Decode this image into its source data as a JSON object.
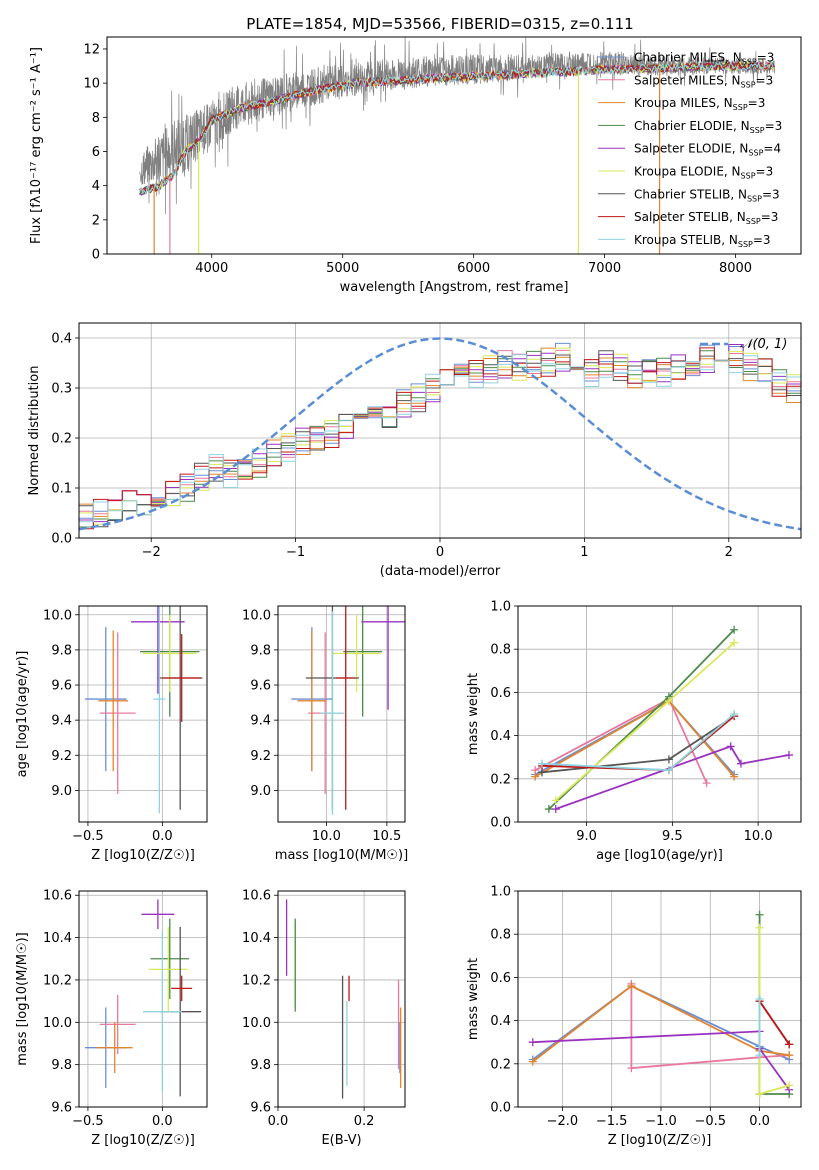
{
  "figure_title": "PLATE=1854, MJD=53566, FIBERID=0315, z=0.111",
  "colors": {
    "chabrier_miles": "#6b8fd6",
    "salpeter_miles": "#e8799c",
    "kroupa_miles": "#e0852d",
    "chabrier_elodie": "#4c8a4c",
    "salpeter_elodie": "#9a32c0",
    "kroupa_elodie": "#d8e85a",
    "chabrier_stelib": "#555555",
    "salpeter_stelib": "#c01818",
    "kroupa_stelib": "#8fd3e0",
    "data": "#808080",
    "normal": "#5b8dd6"
  },
  "chart_data": [
    {
      "id": "spectrum",
      "type": "line",
      "xlabel": "wavelength [Angstrom, rest frame]",
      "ylabel": "Flux [fλ10⁻¹⁷ erg cm⁻² s⁻¹ A⁻¹]",
      "xlim": [
        3200,
        8500
      ],
      "ylim": [
        0,
        12.7
      ],
      "xticks": [
        "4000",
        "5000",
        "6000",
        "7000",
        "8000"
      ],
      "yticks": [
        "0",
        "2",
        "4",
        "6",
        "8",
        "10",
        "12"
      ],
      "legend_position": "right",
      "legend": [
        {
          "base": "Chabrier MILES, N",
          "sub": "SSP",
          "tail": "=3",
          "key": "chabrier_miles"
        },
        {
          "base": "Salpeter MILES, N",
          "sub": "SSP",
          "tail": "=3",
          "key": "salpeter_miles"
        },
        {
          "base": "Kroupa MILES, N",
          "sub": "SSP",
          "tail": "=3",
          "key": "kroupa_miles"
        },
        {
          "base": "Chabrier ELODIE, N",
          "sub": "SSP",
          "tail": "=3",
          "key": "chabrier_elodie"
        },
        {
          "base": "Salpeter ELODIE, N",
          "sub": "SSP",
          "tail": "=4",
          "key": "salpeter_elodie"
        },
        {
          "base": "Kroupa ELODIE, N",
          "sub": "SSP",
          "tail": "=3",
          "key": "kroupa_elodie"
        },
        {
          "base": "Chabrier STELIB, N",
          "sub": "SSP",
          "tail": "=3",
          "key": "chabrier_stelib"
        },
        {
          "base": "Salpeter STELIB, N",
          "sub": "SSP",
          "tail": "=3",
          "key": "salpeter_stelib"
        },
        {
          "base": "Kroupa STELIB, N",
          "sub": "SSP",
          "tail": "=3",
          "key": "kroupa_stelib"
        }
      ],
      "model_continuum": [
        [
          3450,
          3.6
        ],
        [
          3600,
          4.0
        ],
        [
          3700,
          4.6
        ],
        [
          3800,
          6.0
        ],
        [
          3900,
          6.6
        ],
        [
          4000,
          7.8
        ],
        [
          4200,
          8.5
        ],
        [
          4500,
          9.0
        ],
        [
          4800,
          9.6
        ],
        [
          5100,
          10.0
        ],
        [
          5500,
          10.2
        ],
        [
          6000,
          10.4
        ],
        [
          6500,
          10.6
        ],
        [
          7000,
          10.8
        ],
        [
          7500,
          10.9
        ],
        [
          8000,
          11.0
        ],
        [
          8300,
          11.0
        ]
      ],
      "data_envelope": [
        [
          3450,
          3.2,
          6.5
        ],
        [
          3700,
          3.0,
          9.0
        ],
        [
          3900,
          4.5,
          9.5
        ],
        [
          4200,
          6.5,
          10.8
        ],
        [
          4600,
          7.5,
          11.5
        ],
        [
          5000,
          8.5,
          11.8
        ],
        [
          5500,
          9.0,
          12.2
        ],
        [
          6000,
          9.3,
          12.3
        ],
        [
          6500,
          9.8,
          12.2
        ],
        [
          7000,
          10.0,
          12.4
        ],
        [
          7500,
          10.0,
          12.0
        ],
        [
          8000,
          10.2,
          11.8
        ],
        [
          8300,
          10.3,
          11.6
        ]
      ]
    },
    {
      "id": "residuals",
      "type": "histogram",
      "xlabel": "(data-model)/error",
      "ylabel": "Normed distribution",
      "xlim": [
        -2.5,
        2.5
      ],
      "ylim": [
        0,
        0.43
      ],
      "xticks": [
        "−2",
        "−1",
        "0",
        "1",
        "2"
      ],
      "yticks": [
        "0.0",
        "0.1",
        "0.2",
        "0.3",
        "0.4"
      ],
      "bin_width": 0.1,
      "bins_from": -2.5,
      "base_profile": [
        0.04,
        0.05,
        0.06,
        0.07,
        0.07,
        0.08,
        0.09,
        0.1,
        0.12,
        0.14,
        0.13,
        0.14,
        0.15,
        0.17,
        0.18,
        0.19,
        0.2,
        0.21,
        0.22,
        0.24,
        0.26,
        0.25,
        0.27,
        0.28,
        0.3,
        0.31,
        0.32,
        0.33,
        0.34,
        0.35,
        0.34,
        0.35,
        0.35,
        0.36,
        0.34,
        0.33,
        0.35,
        0.34,
        0.33,
        0.34,
        0.33,
        0.34,
        0.35,
        0.36,
        0.37,
        0.36,
        0.34,
        0.33,
        0.31,
        0.3,
        0.29,
        0.27,
        0.25,
        0.24,
        0.22,
        0.2,
        0.19,
        0.17,
        0.15,
        0.14,
        0.13,
        0.12,
        0.11,
        0.1,
        0.09,
        0.08,
        0.07,
        0.07,
        0.06,
        0.05,
        0.05,
        0.04,
        0.04,
        0.04,
        0.04,
        0.03,
        0.03,
        0.03,
        0.03,
        0.03
      ],
      "gaussian_label": "𝒩(0, 1)",
      "gaussian": {
        "mu": 0,
        "sigma": 1
      }
    },
    {
      "id": "age_vs_Z",
      "type": "errorbar",
      "xlabel": "Z [log10(Z/Z☉)]",
      "ylabel": "age  [log10(age/yr)]",
      "xlim": [
        -0.56,
        0.3
      ],
      "ylim": [
        8.82,
        10.05
      ],
      "xticks": [
        "−0.5",
        "0.0"
      ],
      "yticks": [
        "9.0",
        "9.2",
        "9.4",
        "9.6",
        "9.8",
        "10.0"
      ],
      "points": [
        {
          "key": "chabrier_miles",
          "x": -0.38,
          "xerr": 0.14,
          "y": 9.52,
          "yerr": 0.41
        },
        {
          "key": "salpeter_miles",
          "x": -0.3,
          "xerr": 0.12,
          "y": 9.44,
          "yerr": 0.46
        },
        {
          "key": "kroupa_miles",
          "x": -0.33,
          "xerr": 0.1,
          "y": 9.51,
          "yerr": 0.4
        },
        {
          "key": "chabrier_elodie",
          "x": 0.05,
          "xerr": 0.2,
          "y": 9.79,
          "yerr": 0.37
        },
        {
          "key": "salpeter_elodie",
          "x": -0.03,
          "xerr": 0.18,
          "y": 9.96,
          "yerr": 0.41
        },
        {
          "key": "kroupa_elodie",
          "x": 0.05,
          "xerr": 0.18,
          "y": 9.78,
          "yerr": 0.22
        },
        {
          "key": "chabrier_stelib",
          "x": 0.12,
          "xerr": 0.15,
          "y": 9.64,
          "yerr": 0.75
        },
        {
          "key": "salpeter_stelib",
          "x": 0.13,
          "xerr": 0.13,
          "y": 9.64,
          "yerr": 0.25
        },
        {
          "key": "kroupa_stelib",
          "x": -0.02,
          "xerr": 0.04,
          "y": 9.52,
          "yerr": 0.65
        }
      ]
    },
    {
      "id": "age_vs_mass",
      "type": "errorbar",
      "xlabel": "mass [log10(M/M☉)]",
      "ylabel": "",
      "xlim": [
        9.6,
        10.65
      ],
      "ylim": [
        8.82,
        10.05
      ],
      "xticks": [
        "10.0",
        "10.5"
      ],
      "yticks": [
        "9.0",
        "9.2",
        "9.4",
        "9.6",
        "9.8",
        "10.0"
      ],
      "points": [
        {
          "key": "chabrier_miles",
          "x": 9.88,
          "xerr": 0.17,
          "y": 9.52,
          "yerr": 0.41
        },
        {
          "key": "salpeter_miles",
          "x": 9.99,
          "xerr": 0.14,
          "y": 9.44,
          "yerr": 0.46
        },
        {
          "key": "kroupa_miles",
          "x": 9.88,
          "xerr": 0.12,
          "y": 9.51,
          "yerr": 0.4
        },
        {
          "key": "chabrier_elodie",
          "x": 10.3,
          "xerr": 0.16,
          "y": 9.79,
          "yerr": 0.37
        },
        {
          "key": "salpeter_elodie",
          "x": 10.51,
          "xerr": 0.22,
          "y": 9.96,
          "yerr": 0.5
        },
        {
          "key": "kroupa_elodie",
          "x": 10.25,
          "xerr": 0.2,
          "y": 9.78,
          "yerr": 0.22
        },
        {
          "key": "chabrier_stelib",
          "x": 10.05,
          "xerr": 0.22,
          "y": 9.64,
          "yerr": 0.75
        },
        {
          "key": "salpeter_stelib",
          "x": 10.16,
          "xerr": 0.08,
          "y": 9.64,
          "yerr": 0.75
        },
        {
          "key": "kroupa_stelib",
          "x": 10.05,
          "xerr": 0.1,
          "y": 9.44,
          "yerr": 0.58
        }
      ]
    },
    {
      "id": "weight_vs_age",
      "type": "line",
      "xlabel": "age  [log10(age/yr)]",
      "ylabel": "mass weight",
      "xlim": [
        8.6,
        10.25
      ],
      "ylim": [
        0,
        1.0
      ],
      "xticks": [
        "9.0",
        "9.5",
        "10.0"
      ],
      "yticks": [
        "0.0",
        "0.2",
        "0.4",
        "0.6",
        "0.8",
        "1.0"
      ],
      "series": [
        {
          "key": "chabrier_miles",
          "x": [
            8.7,
            9.48,
            9.86
          ],
          "y": [
            0.22,
            0.56,
            0.22
          ]
        },
        {
          "key": "salpeter_miles",
          "x": [
            8.7,
            9.48,
            9.7
          ],
          "y": [
            0.24,
            0.57,
            0.18
          ]
        },
        {
          "key": "kroupa_miles",
          "x": [
            8.7,
            9.48,
            9.86
          ],
          "y": [
            0.21,
            0.56,
            0.21
          ]
        },
        {
          "key": "chabrier_elodie",
          "x": [
            8.78,
            9.48,
            9.86
          ],
          "y": [
            0.06,
            0.58,
            0.89
          ]
        },
        {
          "key": "salpeter_elodie",
          "x": [
            8.82,
            9.84,
            9.9,
            10.18
          ],
          "y": [
            0.06,
            0.35,
            0.27,
            0.31
          ]
        },
        {
          "key": "kroupa_elodie",
          "x": [
            8.82,
            9.48,
            9.86
          ],
          "y": [
            0.1,
            0.56,
            0.83
          ]
        },
        {
          "key": "chabrier_stelib",
          "x": [
            8.74,
            9.48,
            9.86
          ],
          "y": [
            0.23,
            0.29,
            0.49
          ]
        },
        {
          "key": "salpeter_stelib",
          "x": [
            8.74,
            9.48,
            9.86
          ],
          "y": [
            0.26,
            0.24,
            0.49
          ]
        },
        {
          "key": "kroupa_stelib",
          "x": [
            8.74,
            9.48,
            9.86
          ],
          "y": [
            0.27,
            0.24,
            0.5
          ]
        }
      ]
    },
    {
      "id": "mass_vs_Z",
      "type": "errorbar",
      "xlabel": "Z [log10(Z/Z☉)]",
      "ylabel": "mass [log10(M/M☉)]",
      "xlim": [
        -0.56,
        0.3
      ],
      "ylim": [
        9.6,
        10.62
      ],
      "xticks": [
        "−0.5",
        "0.0"
      ],
      "yticks": [
        "9.6",
        "9.8",
        "10.0",
        "10.2",
        "10.4",
        "10.6"
      ],
      "points": [
        {
          "key": "chabrier_miles",
          "x": -0.38,
          "xerr": 0.14,
          "y": 9.88,
          "yerr": 0.19
        },
        {
          "key": "salpeter_miles",
          "x": -0.3,
          "xerr": 0.12,
          "y": 9.99,
          "yerr": 0.14
        },
        {
          "key": "kroupa_miles",
          "x": -0.32,
          "xerr": 0.12,
          "y": 9.88,
          "yerr": 0.12
        },
        {
          "key": "chabrier_elodie",
          "x": 0.05,
          "xerr": 0.13,
          "y": 10.3,
          "yerr": 0.19
        },
        {
          "key": "salpeter_elodie",
          "x": -0.03,
          "xerr": 0.11,
          "y": 10.51,
          "yerr": 0.07
        },
        {
          "key": "kroupa_elodie",
          "x": 0.04,
          "xerr": 0.13,
          "y": 10.25,
          "yerr": 0.2
        },
        {
          "key": "chabrier_stelib",
          "x": 0.12,
          "xerr": 0.14,
          "y": 10.05,
          "yerr": 0.4
        },
        {
          "key": "salpeter_stelib",
          "x": 0.13,
          "xerr": 0.07,
          "y": 10.16,
          "yerr": 0.06
        },
        {
          "key": "kroupa_stelib",
          "x": 0.0,
          "xerr": 0.13,
          "y": 10.05,
          "yerr": 0.38
        }
      ]
    },
    {
      "id": "mass_vs_ebv",
      "type": "errorbar",
      "xlabel": "E(B-V)",
      "ylabel": "",
      "xlim": [
        0.0,
        0.295
      ],
      "ylim": [
        9.6,
        10.62
      ],
      "xticks": [
        "0.0",
        "0.2"
      ],
      "yticks": [
        "9.6",
        "9.8",
        "10.0",
        "10.2",
        "10.4",
        "10.6"
      ],
      "points": [
        {
          "key": "salpeter_elodie",
          "x": 0.02,
          "y": 10.4,
          "yerr": 0.18
        },
        {
          "key": "kroupa_elodie",
          "x": 0.04,
          "y": 10.27,
          "yerr": 0.2
        },
        {
          "key": "chabrier_elodie",
          "x": 0.04,
          "y": 10.27,
          "yerr": 0.22
        },
        {
          "key": "chabrier_stelib",
          "x": 0.15,
          "y": 9.93,
          "yerr": 0.29
        },
        {
          "key": "salpeter_stelib",
          "x": 0.165,
          "y": 10.16,
          "yerr": 0.06
        },
        {
          "key": "kroupa_stelib",
          "x": 0.16,
          "y": 9.9,
          "yerr": 0.2
        },
        {
          "key": "salpeter_miles",
          "x": 0.28,
          "y": 9.99,
          "yerr": 0.21
        },
        {
          "key": "chabrier_miles",
          "x": 0.283,
          "y": 9.88,
          "yerr": 0.12
        },
        {
          "key": "kroupa_miles",
          "x": 0.285,
          "y": 9.88,
          "yerr": 0.19
        }
      ]
    },
    {
      "id": "weight_vs_Z",
      "type": "line",
      "xlabel": "Z [log10(Z/Z☉)]",
      "ylabel": "mass weight",
      "xlim": [
        -2.45,
        0.42
      ],
      "ylim": [
        0,
        1.0
      ],
      "xticks": [
        "−2.0",
        "−1.5",
        "−1.0",
        "−0.5",
        "0.0"
      ],
      "yticks": [
        "0.0",
        "0.2",
        "0.4",
        "0.6",
        "0.8",
        "1.0"
      ],
      "series": [
        {
          "key": "chabrier_miles",
          "x": [
            -2.3,
            -1.3,
            0.0,
            0.3
          ],
          "y": [
            0.22,
            0.56,
            0.28,
            0.22
          ]
        },
        {
          "key": "salpeter_miles",
          "x": [
            -1.3,
            -1.3,
            0.0,
            0.3
          ],
          "y": [
            0.57,
            0.18,
            0.23,
            0.24
          ]
        },
        {
          "key": "kroupa_miles",
          "x": [
            -2.3,
            -1.3,
            0.0,
            0.3
          ],
          "y": [
            0.21,
            0.56,
            0.26,
            0.24
          ]
        },
        {
          "key": "chabrier_elodie",
          "x": [
            0.0,
            0.0,
            0.3
          ],
          "y": [
            0.89,
            0.06,
            0.06
          ]
        },
        {
          "key": "salpeter_elodie",
          "x": [
            -2.3,
            0.0,
            0.0,
            0.3
          ],
          "y": [
            0.3,
            0.35,
            0.27,
            0.08
          ]
        },
        {
          "key": "kroupa_elodie",
          "x": [
            0.0,
            0.0,
            0.3
          ],
          "y": [
            0.83,
            0.06,
            0.1
          ]
        },
        {
          "key": "chabrier_stelib",
          "x": [
            0.0,
            0.3
          ],
          "y": [
            0.49,
            0.29
          ]
        },
        {
          "key": "salpeter_stelib",
          "x": [
            0.0,
            0.3
          ],
          "y": [
            0.49,
            0.29
          ]
        },
        {
          "key": "kroupa_stelib",
          "x": [
            0.0,
            0.0
          ],
          "y": [
            0.5,
            0.24
          ]
        }
      ]
    }
  ]
}
